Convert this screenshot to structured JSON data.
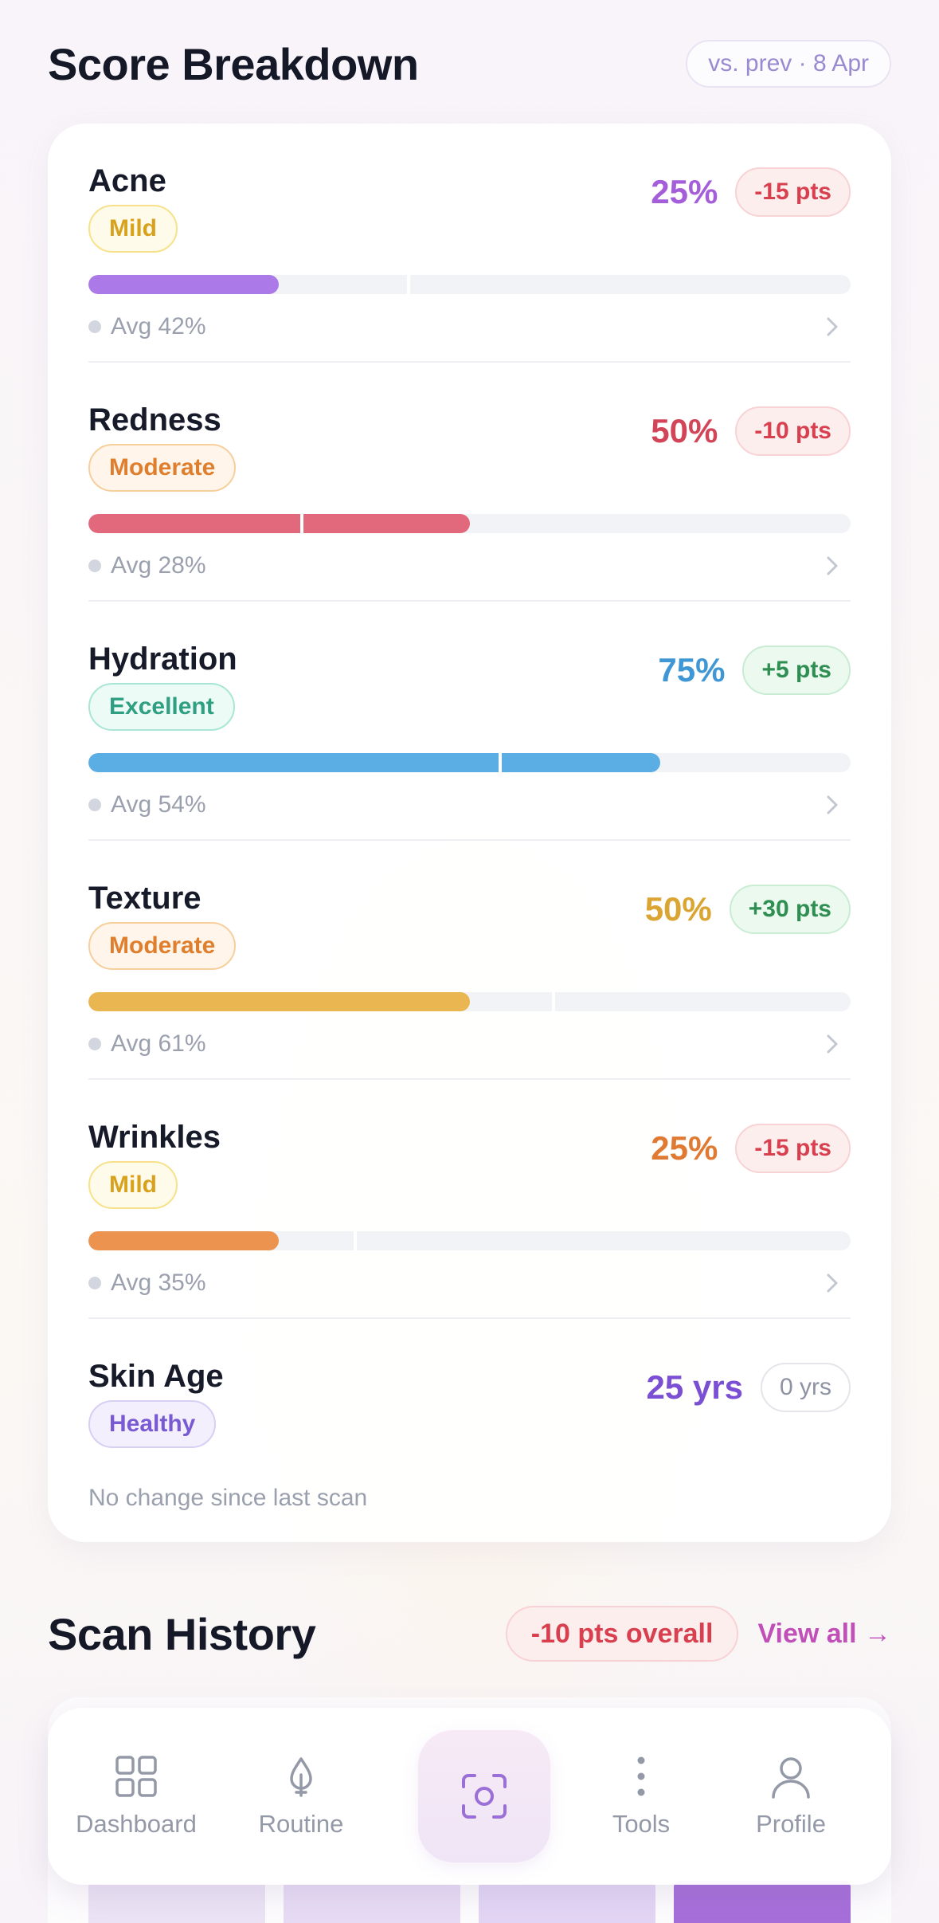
{
  "breakdown": {
    "title": "Score Breakdown",
    "compare_label": "vs. prev · 8 Apr"
  },
  "metrics": [
    {
      "name": "Acne",
      "badge": "Mild",
      "score": "25%",
      "delta": "-15 pts",
      "avg": "Avg 42%",
      "value": 0.25,
      "average": 0.42,
      "color": "#ac7ae8",
      "score_color": "#a55ed9"
    },
    {
      "name": "Redness",
      "badge": "Moderate",
      "score": "50%",
      "delta": "-10 pts",
      "avg": "Avg 28%",
      "value": 0.5,
      "average": 0.28,
      "color": "#e2697c",
      "score_color": "#d24457"
    },
    {
      "name": "Hydration",
      "badge": "Excellent",
      "score": "75%",
      "delta": "+5 pts",
      "avg": "Avg 54%",
      "value": 0.75,
      "average": 0.54,
      "color": "#5aaee3",
      "score_color": "#3f97d5"
    },
    {
      "name": "Texture",
      "badge": "Moderate",
      "score": "50%",
      "delta": "+30 pts",
      "avg": "Avg 61%",
      "value": 0.5,
      "average": 0.61,
      "color": "#e9b651",
      "score_color": "#dba533"
    },
    {
      "name": "Wrinkles",
      "badge": "Mild",
      "score": "25%",
      "delta": "-15 pts",
      "avg": "Avg 35%",
      "value": 0.25,
      "average": 0.35,
      "color": "#ed9350",
      "score_color": "#e07a33"
    }
  ],
  "skin_age": {
    "name": "Skin Age",
    "badge": "Healthy",
    "score": "25 yrs",
    "delta": "0 yrs",
    "note": "No change since last scan",
    "score_color": "#7a4fd3"
  },
  "history": {
    "title": "Scan History",
    "overall": "-10 pts overall",
    "view_all": "View all →"
  },
  "nav": {
    "items": [
      {
        "label": "Dashboard",
        "icon": "grid-icon"
      },
      {
        "label": "Routine",
        "icon": "drop-icon"
      },
      {
        "label": "",
        "icon": "scan-icon"
      },
      {
        "label": "Tools",
        "icon": "more-vertical-icon"
      },
      {
        "label": "Profile",
        "icon": "user-icon"
      }
    ]
  }
}
